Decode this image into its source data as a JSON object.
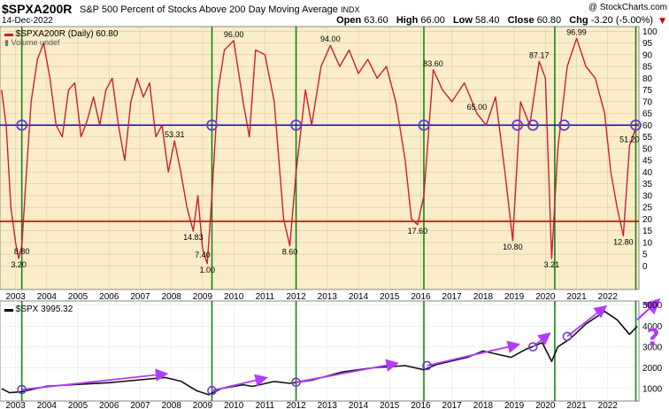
{
  "header": {
    "symbol": "$SPXA200R",
    "description": "S&P 500 Percent of Stocks Above 200 Day Moving Average",
    "exchange": "INDX",
    "date": "14-Dec-2022",
    "credit": "@ StockCharts.com",
    "open_label": "Open",
    "open": "63.60",
    "high_label": "High",
    "high": "66.00",
    "low_label": "Low",
    "low": "58.40",
    "close_label": "Close",
    "close": "60.80",
    "chg_label": "Chg",
    "chg": "-3.20 (-5.00%)",
    "chg_arrow": "▼"
  },
  "top_panel": {
    "legend_main": "$SPXA200R (Daily) 60.80",
    "legend_sub": "Volume undef",
    "colors": {
      "background": "#fbedc9",
      "line": "#cc1f33",
      "hline_60": "#0000cc",
      "hline_19": "#cc0000",
      "vline": "#118811"
    },
    "annotations": [
      "8.80",
      "3.20",
      "96.00",
      "94.00",
      "83.60",
      "87.17",
      "96.99",
      "65.00",
      "53.31",
      "14.83",
      "7.40",
      "1.00",
      "8.60",
      "17.60",
      "10.80",
      "3.21",
      "12.80",
      "51.20"
    ]
  },
  "bottom_panel": {
    "legend": "$SPX 3995.32",
    "question_mark": "?",
    "colors": {
      "line": "#111111",
      "trend": "#b13bff"
    }
  },
  "chart_data": [
    {
      "type": "line",
      "name": "$SPXA200R",
      "ylim": [
        -10,
        102
      ],
      "yticks": [
        0,
        5,
        10,
        15,
        20,
        25,
        30,
        35,
        40,
        45,
        50,
        55,
        60,
        65,
        70,
        75,
        80,
        85,
        90,
        95,
        100
      ],
      "x_range": [
        2002.5,
        2023.0
      ],
      "xticks": [
        "2003",
        "2004",
        "2005",
        "2006",
        "2007",
        "2008",
        "2009",
        "2010",
        "2011",
        "2012",
        "2013",
        "2014",
        "2015",
        "2016",
        "2017",
        "2018",
        "2019",
        "2020",
        "2021",
        "2022"
      ],
      "hlines": [
        60,
        19
      ],
      "vlines": [
        2003.2,
        2009.3,
        2012.0,
        2016.1,
        2020.3,
        2022.9
      ],
      "circles": [
        [
          2003.2,
          60
        ],
        [
          2009.3,
          60
        ],
        [
          2012.0,
          60
        ],
        [
          2016.1,
          60
        ],
        [
          2019.1,
          60
        ],
        [
          2019.6,
          60
        ],
        [
          2020.6,
          60
        ],
        [
          2022.9,
          60
        ]
      ],
      "x": [
        2002.55,
        2002.7,
        2002.85,
        2003.0,
        2003.1,
        2003.2,
        2003.35,
        2003.5,
        2003.7,
        2003.9,
        2004.1,
        2004.3,
        2004.5,
        2004.7,
        2004.9,
        2005.1,
        2005.3,
        2005.5,
        2005.7,
        2005.9,
        2006.1,
        2006.3,
        2006.5,
        2006.7,
        2006.9,
        2007.1,
        2007.3,
        2007.5,
        2007.7,
        2007.9,
        2008.1,
        2008.3,
        2008.5,
        2008.7,
        2008.85,
        2009.0,
        2009.15,
        2009.3,
        2009.5,
        2009.7,
        2010.0,
        2010.3,
        2010.5,
        2010.7,
        2011.0,
        2011.3,
        2011.6,
        2011.8,
        2012.0,
        2012.3,
        2012.5,
        2012.8,
        2013.1,
        2013.4,
        2013.7,
        2014.0,
        2014.3,
        2014.6,
        2014.9,
        2015.2,
        2015.5,
        2015.7,
        2015.9,
        2016.1,
        2016.4,
        2016.7,
        2017.0,
        2017.4,
        2017.8,
        2018.1,
        2018.4,
        2018.7,
        2018.95,
        2019.2,
        2019.5,
        2019.8,
        2020.0,
        2020.2,
        2020.4,
        2020.7,
        2021.0,
        2021.3,
        2021.6,
        2021.9,
        2022.1,
        2022.3,
        2022.5,
        2022.7,
        2022.95
      ],
      "y": [
        75,
        60,
        25,
        10,
        3.2,
        8.8,
        40,
        70,
        88,
        95,
        80,
        60,
        55,
        75,
        78,
        55,
        62,
        72,
        60,
        75,
        80,
        60,
        45,
        70,
        80,
        72,
        78,
        55,
        60,
        40,
        53.31,
        40,
        25,
        14.83,
        30,
        7.4,
        1.0,
        30,
        75,
        92,
        96,
        70,
        55,
        92,
        90,
        70,
        20,
        8.6,
        40,
        75,
        60,
        85,
        94,
        85,
        92,
        82,
        88,
        80,
        85,
        70,
        45,
        20,
        17.6,
        30,
        83.6,
        75,
        70,
        78,
        65,
        60,
        72,
        40,
        10.8,
        70,
        60,
        87.17,
        80,
        3.21,
        50,
        85,
        96.99,
        85,
        80,
        65,
        40,
        25,
        12.8,
        51.2,
        60.8
      ]
    },
    {
      "type": "line",
      "name": "$SPX",
      "ylim": [
        400,
        5200
      ],
      "yticks": [
        1000,
        2000,
        3000,
        4000,
        5000
      ],
      "x_range": [
        2002.5,
        2023.0
      ],
      "x": [
        2002.55,
        2002.8,
        2003.2,
        2004.0,
        2005.0,
        2006.0,
        2007.0,
        2007.8,
        2008.3,
        2008.8,
        2009.2,
        2009.6,
        2010.3,
        2010.6,
        2011.3,
        2011.8,
        2012.5,
        2013.5,
        2014.5,
        2015.5,
        2016.1,
        2016.5,
        2017.5,
        2018.0,
        2018.9,
        2019.4,
        2019.9,
        2020.2,
        2020.4,
        2020.8,
        2021.3,
        2021.9,
        2022.3,
        2022.7,
        2022.95
      ],
      "y": [
        1000,
        800,
        850,
        1110,
        1200,
        1280,
        1420,
        1530,
        1350,
        900,
        700,
        1000,
        1180,
        1100,
        1340,
        1250,
        1400,
        1800,
        2000,
        2100,
        1900,
        2150,
        2500,
        2800,
        2500,
        2900,
        3200,
        2300,
        3000,
        3400,
        4100,
        4700,
        4300,
        3600,
        3995.32
      ],
      "trend_arrows": [
        [
          [
            2003.2,
            950
          ],
          [
            2007.8,
            1700
          ]
        ],
        [
          [
            2009.3,
            900
          ],
          [
            2011.0,
            1500
          ]
        ],
        [
          [
            2012.0,
            1300
          ],
          [
            2015.2,
            2200
          ]
        ],
        [
          [
            2016.2,
            2100
          ],
          [
            2019.1,
            3100
          ]
        ],
        [
          [
            2019.6,
            3000
          ],
          [
            2020.1,
            3600
          ]
        ],
        [
          [
            2020.7,
            3500
          ],
          [
            2021.9,
            4900
          ]
        ]
      ],
      "forecast_arrow": [
        [
          2023.0,
          4300
        ],
        [
          2023.6,
          5200
        ]
      ]
    }
  ]
}
